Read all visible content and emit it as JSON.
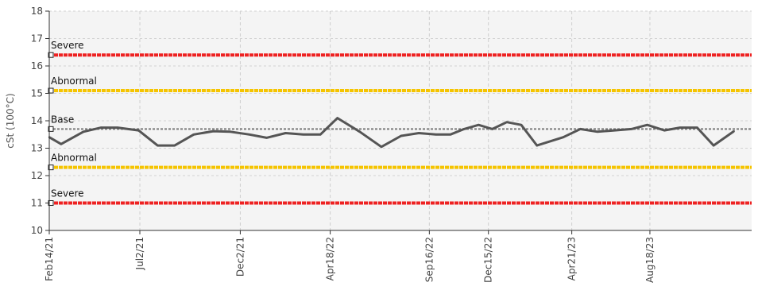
{
  "chart_data": {
    "type": "line",
    "title": "",
    "xlabel": "",
    "ylabel": "cSt (100°C)",
    "ylim": [
      10,
      18
    ],
    "yticks": [
      "10",
      "11",
      "12",
      "13",
      "14",
      "15",
      "16",
      "17",
      "18"
    ],
    "x_tick_labels": [
      "Feb14/21",
      "Jul2/21",
      "Dec2/21",
      "Apr18/22",
      "Sep16/22",
      "Dec15/22",
      "Apr21/23",
      "Aug18/23"
    ],
    "x_tick_dates": [
      "2021-02-14",
      "2021-07-02",
      "2021-12-02",
      "2022-04-18",
      "2022-09-16",
      "2022-12-15",
      "2023-04-21",
      "2023-08-18"
    ],
    "x_range": [
      "2021-02-14",
      "2024-01-20"
    ],
    "grid": true,
    "limits": [
      {
        "label": "Severe",
        "value": 16.4,
        "color": "#ee2222"
      },
      {
        "label": "Abnormal",
        "value": 15.1,
        "color": "#f5c400"
      },
      {
        "label": "Base",
        "value": 13.7,
        "color": "#7a7a7a"
      },
      {
        "label": "Abnormal",
        "value": 12.3,
        "color": "#f5c400"
      },
      {
        "label": "Severe",
        "value": 11.0,
        "color": "#ee2222"
      }
    ],
    "series": [
      {
        "color": "#555555",
        "points": [
          {
            "x": "2021-02-14",
            "y": 13.4
          },
          {
            "x": "2021-03-04",
            "y": 13.15
          },
          {
            "x": "2021-04-07",
            "y": 13.6
          },
          {
            "x": "2021-05-04",
            "y": 13.75
          },
          {
            "x": "2021-05-29",
            "y": 13.75
          },
          {
            "x": "2021-06-30",
            "y": 13.65
          },
          {
            "x": "2021-07-29",
            "y": 13.1
          },
          {
            "x": "2021-08-24",
            "y": 13.1
          },
          {
            "x": "2021-09-22",
            "y": 13.5
          },
          {
            "x": "2021-10-22",
            "y": 13.62
          },
          {
            "x": "2021-11-17",
            "y": 13.6
          },
          {
            "x": "2021-12-16",
            "y": 13.5
          },
          {
            "x": "2022-01-11",
            "y": 13.38
          },
          {
            "x": "2022-02-09",
            "y": 13.55
          },
          {
            "x": "2022-03-08",
            "y": 13.5
          },
          {
            "x": "2022-04-03",
            "y": 13.5
          },
          {
            "x": "2022-04-29",
            "y": 14.1
          },
          {
            "x": "2022-06-02",
            "y": 13.6
          },
          {
            "x": "2022-07-05",
            "y": 13.05
          },
          {
            "x": "2022-08-04",
            "y": 13.45
          },
          {
            "x": "2022-08-31",
            "y": 13.55
          },
          {
            "x": "2022-09-26",
            "y": 13.5
          },
          {
            "x": "2022-10-18",
            "y": 13.5
          },
          {
            "x": "2022-11-08",
            "y": 13.7
          },
          {
            "x": "2022-11-30",
            "y": 13.85
          },
          {
            "x": "2022-12-21",
            "y": 13.7
          },
          {
            "x": "2023-01-12",
            "y": 13.95
          },
          {
            "x": "2023-02-03",
            "y": 13.85
          },
          {
            "x": "2023-02-27",
            "y": 13.1
          },
          {
            "x": "2023-04-08",
            "y": 13.4
          },
          {
            "x": "2023-05-04",
            "y": 13.7
          },
          {
            "x": "2023-05-30",
            "y": 13.6
          },
          {
            "x": "2023-06-25",
            "y": 13.65
          },
          {
            "x": "2023-07-21",
            "y": 13.7
          },
          {
            "x": "2023-08-14",
            "y": 13.85
          },
          {
            "x": "2023-09-09",
            "y": 13.65
          },
          {
            "x": "2023-10-03",
            "y": 13.75
          },
          {
            "x": "2023-10-29",
            "y": 13.75
          },
          {
            "x": "2023-11-23",
            "y": 13.1
          },
          {
            "x": "2023-12-24",
            "y": 13.62
          }
        ]
      }
    ]
  }
}
